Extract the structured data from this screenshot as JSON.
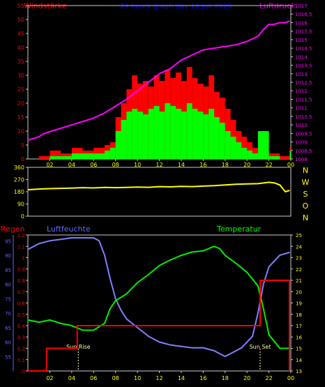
{
  "header": {
    "left_title": "Windstärke",
    "center_title": "24 hours graph day  16 Juli 2020",
    "right_title": "Luftdruck"
  },
  "colors": {
    "background": "#000000",
    "frame": "#cccccc",
    "wind": "#ff0000",
    "gust": "#00ff00",
    "pressure": "#ff00ff",
    "direction": "#ffff00",
    "temperature": "#00ee00",
    "humidity": "#8080ff",
    "rain": "#ff0000",
    "hour_label": "#ffff00",
    "left_title": "#ff0000",
    "center_title": "#0000ff",
    "right_title": "#cc00cc",
    "direction_letters": "#ffff00",
    "humidity_axis": "#6666ff",
    "temperature_axis": "#ffff00",
    "sun_label": "#ffff99",
    "temperature_title": "#00ff00",
    "rain_title": "#ff0000",
    "humidity_title": "#6666ff"
  },
  "chart_data": [
    {
      "id": "wind_pressure",
      "type": "bar",
      "x_ticks": [
        "02",
        "04",
        "06",
        "08",
        "10",
        "12",
        "14",
        "16",
        "18",
        "20",
        "22",
        "00"
      ],
      "left_axis": {
        "name": "Windstärke",
        "ylim": [
          0,
          55
        ],
        "ticks": [
          "0",
          "5",
          "10",
          "15",
          "20",
          "25",
          "30",
          "35",
          "40",
          "45",
          "50",
          "55"
        ]
      },
      "right_axis": {
        "name": "Luftdruck",
        "ylim": [
          1008,
          1017
        ],
        "ticks": [
          "1008",
          "1008,5",
          "1009",
          "1009,5",
          "1010",
          "1010,5",
          "1011",
          "1011,5",
          "1012",
          "1012,5",
          "1013",
          "1013,5",
          "1014",
          "1014,5",
          "1015",
          "1015,5",
          "1016",
          "1016,5",
          "1017"
        ]
      },
      "series": [
        {
          "key": "wind_gust",
          "hours": [
            0,
            1,
            2,
            3,
            4,
            5,
            6,
            7,
            7.5,
            8,
            8.5,
            9,
            9.5,
            10,
            10.5,
            11,
            11.5,
            12,
            12.5,
            13,
            13.5,
            14,
            14.5,
            15,
            15.5,
            16,
            16.5,
            17,
            17.5,
            18,
            18.5,
            19,
            19.5,
            20,
            20.5,
            21,
            22,
            23,
            23.9
          ],
          "values": [
            0,
            1,
            3,
            2,
            4,
            3,
            4,
            5,
            6,
            15,
            20,
            25,
            30,
            27,
            28,
            26,
            30,
            28,
            32,
            29,
            31,
            28,
            33,
            29,
            27,
            26,
            30,
            24,
            22,
            18,
            14,
            10,
            8,
            6,
            4,
            3,
            2,
            1,
            4
          ]
        },
        {
          "key": "wind_avg",
          "hours": [
            0,
            1,
            2,
            3,
            4,
            5,
            6,
            7,
            7.5,
            8,
            8.5,
            9,
            9.5,
            10,
            10.5,
            11,
            11.5,
            12,
            12.5,
            13,
            13.5,
            14,
            14.5,
            15,
            15.5,
            16,
            16.5,
            17,
            17.5,
            18,
            18.5,
            19,
            19.5,
            20,
            20.5,
            21,
            22,
            23,
            23.9
          ],
          "values": [
            0,
            0,
            1,
            1,
            2,
            2,
            2,
            3,
            4,
            10,
            14,
            17,
            18,
            17,
            16,
            18,
            19,
            17,
            20,
            19,
            18,
            17,
            20,
            18,
            17,
            16,
            18,
            15,
            13,
            10,
            8,
            6,
            4,
            3,
            2,
            10,
            1,
            0,
            3
          ]
        },
        {
          "key": "pressure",
          "hours": [
            0,
            0.5,
            1,
            1.5,
            2,
            3,
            4,
            5,
            6,
            7,
            8,
            9,
            10,
            11,
            12,
            13,
            14,
            15,
            16,
            17,
            18,
            19,
            20,
            21,
            21.5,
            22,
            22.5,
            23,
            23.5,
            23.9
          ],
          "values": [
            1009.1,
            1009.2,
            1009.3,
            1009.5,
            1009.6,
            1009.8,
            1010.0,
            1010.2,
            1010.4,
            1010.7,
            1011.1,
            1011.5,
            1012.0,
            1012.5,
            1013.0,
            1013.3,
            1013.8,
            1014.1,
            1014.4,
            1014.5,
            1014.6,
            1014.7,
            1014.9,
            1015.2,
            1015.6,
            1015.9,
            1015.9,
            1016.0,
            1016.0,
            1016.1
          ]
        }
      ]
    },
    {
      "id": "wind_direction",
      "type": "line",
      "ylim": [
        0,
        360
      ],
      "y_ticks": [
        "0",
        "90",
        "180",
        "270",
        "360"
      ],
      "direction_letters": [
        "N",
        "W",
        "S",
        "O",
        "N"
      ],
      "series": [
        {
          "key": "direction",
          "hours": [
            0,
            1,
            2,
            3,
            4,
            5,
            6,
            7,
            8,
            9,
            10,
            11,
            12,
            13,
            14,
            15,
            16,
            17,
            18,
            19,
            20,
            21,
            22,
            22.5,
            23,
            23.5,
            23.9
          ],
          "values": [
            195,
            200,
            203,
            205,
            207,
            210,
            208,
            212,
            210,
            212,
            215,
            213,
            218,
            216,
            220,
            218,
            222,
            225,
            230,
            235,
            238,
            240,
            250,
            245,
            230,
            180,
            190
          ]
        }
      ]
    },
    {
      "id": "weather",
      "type": "line",
      "x_ticks": [
        "02",
        "04",
        "06",
        "08",
        "10",
        "12",
        "14",
        "16",
        "18",
        "20",
        "22",
        "00"
      ],
      "titles": {
        "rain": "Regen",
        "humidity": "Luftfeuchte",
        "temperature": "Temperatur"
      },
      "rain_axis": {
        "ylim": [
          0,
          1.2
        ],
        "ticks": [
          "0",
          "0.1",
          "0.2",
          "0.3",
          "0.4",
          "0.5",
          "0.6",
          "0.7",
          "0.8",
          "0.9",
          "1",
          "1.1",
          "1.2"
        ]
      },
      "humidity_axis": {
        "ylim": [
          50,
          97
        ],
        "ticks": [
          "55",
          "60",
          "65",
          "70",
          "75",
          "80",
          "85",
          "90",
          "95"
        ]
      },
      "temperature_axis": {
        "ylim": [
          13,
          25
        ],
        "ticks": [
          "13",
          "14",
          "15",
          "16",
          "17",
          "18",
          "19",
          "20",
          "21",
          "22",
          "23",
          "24",
          "25"
        ]
      },
      "annotations": [
        {
          "text": "Sun Rise",
          "hour": 4.6
        },
        {
          "text": "Sun Set",
          "hour": 21.2
        }
      ],
      "series": [
        {
          "key": "humidity",
          "hours": [
            0,
            0.5,
            1,
            2,
            3,
            4,
            5,
            6,
            6.5,
            7,
            7.5,
            8,
            8.5,
            9,
            10,
            11,
            12,
            13,
            14,
            15,
            16,
            16.5,
            17,
            17.5,
            18,
            18.5,
            19,
            19.5,
            20,
            20.5,
            21,
            21.5,
            22,
            23,
            23.9
          ],
          "values": [
            92,
            93,
            94,
            95,
            95.5,
            96,
            96,
            96,
            95,
            90,
            82,
            75,
            71,
            68,
            65,
            62,
            60,
            59,
            58.5,
            58,
            58,
            57.5,
            57,
            56,
            55,
            56,
            57,
            58,
            60,
            62,
            70,
            80,
            86,
            90,
            91
          ]
        },
        {
          "key": "temperature",
          "hours": [
            0,
            1,
            2,
            3,
            4,
            5,
            6,
            7,
            7.5,
            8,
            9,
            10,
            11,
            12,
            13,
            14,
            15,
            16,
            17,
            17.5,
            18,
            19,
            20,
            21,
            21.5,
            22,
            23,
            23.9
          ],
          "values": [
            17.5,
            17.3,
            17.5,
            17.2,
            17.0,
            16.6,
            16.6,
            17.2,
            18.5,
            19.2,
            19.8,
            20.8,
            21.5,
            22.3,
            22.8,
            23.2,
            23.5,
            23.6,
            24.0,
            23.8,
            23.2,
            22.5,
            21.7,
            20.5,
            18.5,
            16.2,
            15.0,
            15.0
          ]
        },
        {
          "key": "rain",
          "hours": [
            0,
            1.7,
            1.7,
            4.5,
            4.5,
            21.2,
            21.2,
            23.9
          ],
          "values": [
            0,
            0,
            0.2,
            0.2,
            0.4,
            0.4,
            0.8,
            0.8
          ]
        }
      ]
    }
  ]
}
